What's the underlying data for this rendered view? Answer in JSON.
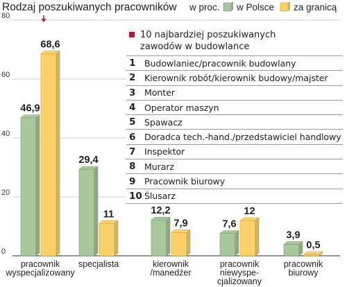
{
  "chart_data": {
    "type": "bar",
    "title": "Rodzaj poszukiwanych pracowników",
    "unit_label": "w proc.",
    "legend_placement": "top-right",
    "ylim": [
      0,
      80
    ],
    "yticks": [
      0,
      20,
      40,
      60,
      80
    ],
    "categories": [
      [
        "pracownik",
        "wyspecjalizowany"
      ],
      [
        "specjalista"
      ],
      [
        "kierownik",
        "/manedżer"
      ],
      [
        "pracownik",
        "niewyspe-",
        "cjalizowany"
      ],
      [
        "pracownik",
        "biurowy"
      ]
    ],
    "series": [
      {
        "name": "w Polsce",
        "color": "#a8c79a",
        "values": [
          46.9,
          29.4,
          12.2,
          7.6,
          3.9
        ],
        "labels": [
          "46,9",
          "29,4",
          "12,2",
          "7,6",
          "3,9"
        ]
      },
      {
        "name": "za granicą",
        "color": "#fcd168",
        "values": [
          68.6,
          11,
          7.9,
          12,
          0.5
        ],
        "labels": [
          "68,6",
          "11",
          "7,9",
          "12",
          "0,5"
        ]
      }
    ],
    "marker_color": "#c8102e"
  },
  "top10": {
    "title_lines": [
      "10 najbardziej poszukiwanych",
      "zawodów w budowlance"
    ],
    "items": [
      {
        "rank": "1",
        "label": "Budowlaniec/pracownik budowlany"
      },
      {
        "rank": "2",
        "label": "Kierownik robót/kierownik budowy/majster"
      },
      {
        "rank": "3",
        "label": "Monter"
      },
      {
        "rank": "4",
        "label": "Operator maszyn"
      },
      {
        "rank": "5",
        "label": "Spawacz"
      },
      {
        "rank": "6",
        "label": "Doradca tech.-hand./przedstawiciel handlowy"
      },
      {
        "rank": "7",
        "label": "Inspektor"
      },
      {
        "rank": "8",
        "label": "Murarz"
      },
      {
        "rank": "9",
        "label": "Pracownik biurowy"
      },
      {
        "rank": "10",
        "label": "Ślusarz"
      }
    ]
  }
}
